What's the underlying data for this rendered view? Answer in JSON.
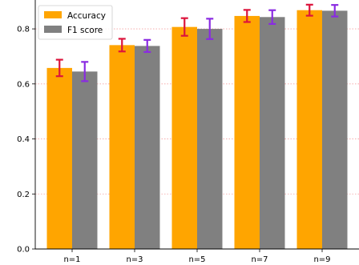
{
  "chart_data": {
    "type": "bar",
    "categories": [
      "n=1",
      "n=3",
      "n=5",
      "n=7",
      "n=9"
    ],
    "series": [
      {
        "name": "Accuracy",
        "color": "#ffa500",
        "error_color": "#dc143c",
        "values": [
          0.658,
          0.741,
          0.807,
          0.847,
          0.868
        ],
        "errors": [
          0.03,
          0.023,
          0.032,
          0.022,
          0.02
        ]
      },
      {
        "name": "F1 score",
        "color": "#808080",
        "error_color": "#8a2be2",
        "values": [
          0.645,
          0.738,
          0.8,
          0.843,
          0.866
        ],
        "errors": [
          0.035,
          0.022,
          0.037,
          0.025,
          0.021
        ]
      }
    ],
    "yticks": [
      "0.0",
      "0.2",
      "0.4",
      "0.6",
      "0.8"
    ],
    "ylim": [
      0,
      0.905
    ],
    "xlabel": "",
    "ylabel": "",
    "title": "",
    "grid": "horizontal dotted",
    "grid_color": "#f4a0a0",
    "legend_position": "top-left"
  }
}
